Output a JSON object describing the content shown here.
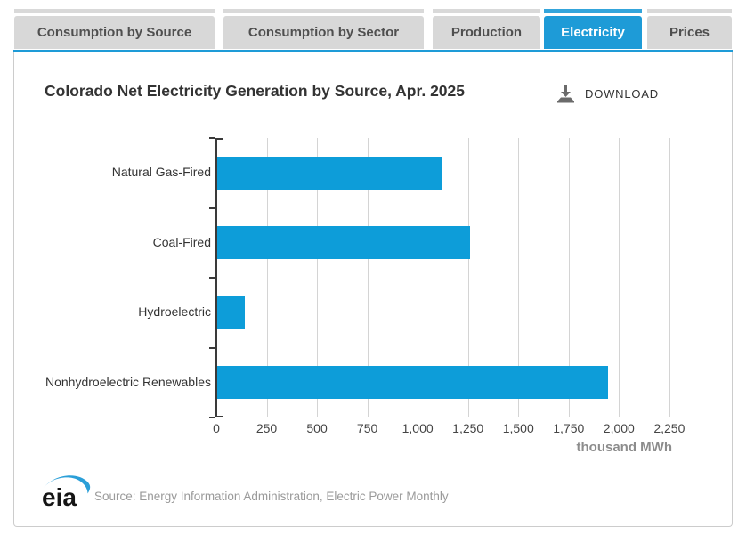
{
  "tabs": [
    {
      "label": "Consumption by Source",
      "active": false
    },
    {
      "label": "Consumption by Sector",
      "active": false
    },
    {
      "label": "Production",
      "active": false
    },
    {
      "label": "Electricity",
      "active": true
    },
    {
      "label": "Prices",
      "active": false
    }
  ],
  "header": {
    "title": "Colorado Net Electricity Generation by Source, Apr. 2025",
    "download_label": "DOWNLOAD"
  },
  "chart_data": {
    "type": "bar",
    "orientation": "horizontal",
    "title": "Colorado Net Electricity Generation by Source, Apr. 2025",
    "categories": [
      "Natural Gas-Fired",
      "Coal-Fired",
      "Hydroelectric",
      "Nonhydroelectric Renewables"
    ],
    "values": [
      1120,
      1255,
      136,
      1943
    ],
    "unit_label": "thousand MWh",
    "x_ticks": [
      0,
      250,
      500,
      750,
      1000,
      1250,
      1500,
      1750,
      2000,
      2250
    ],
    "x_tick_labels": [
      "0",
      "250",
      "500",
      "750",
      "1,000",
      "1,250",
      "1,500",
      "1,750",
      "2,000",
      "2,250"
    ],
    "xlim": [
      0,
      2370
    ],
    "grid": true,
    "legend": "none",
    "bar_color": "#0d9dd9"
  },
  "footer": {
    "logo_text": "eia",
    "source": "Source: Energy Information Administration, Electric Power Monthly"
  },
  "colors": {
    "accent": "#1e9bd7",
    "tab_inactive_bg": "#d8d8d8",
    "tab_text": "#4f4f4f",
    "grid": "#d4d4d4",
    "axis": "#3a3a3a",
    "unit_text": "#8c8c8c",
    "source_text": "#9a9a9a"
  }
}
